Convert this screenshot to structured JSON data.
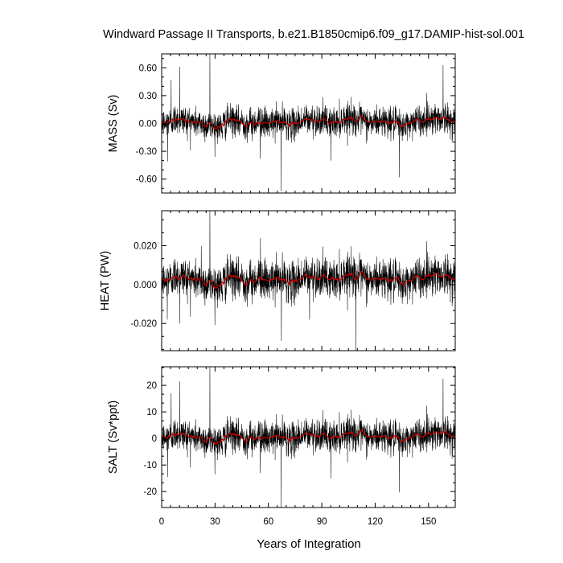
{
  "title": "Windward Passage II Transports, b.e21.B1850cmip6.f09_g17.DAMIP-hist-sol.001",
  "xlabel": "Years of Integration",
  "colors": {
    "raw": "#000000",
    "smooth": "#cc0000"
  },
  "chart_data": [
    {
      "type": "line",
      "ylabel": "MASS (Sv)",
      "xlim": [
        0,
        165
      ],
      "ylim": [
        -0.75,
        0.75
      ],
      "xticks": [
        0,
        30,
        60,
        90,
        120,
        150
      ],
      "xtick_labels": [
        "0",
        "30",
        "60",
        "90",
        "120",
        "150"
      ],
      "yticks": [
        -0.6,
        -0.3,
        0.0,
        0.3,
        0.6
      ],
      "ytick_labels": [
        "-0.60",
        "-0.30",
        "0.00",
        "0.30",
        "0.60"
      ],
      "series_style": {
        "mean": 0.02,
        "std": 0.08
      },
      "spikes": [
        [
          27.1,
          0.76
        ],
        [
          67.1,
          -0.73
        ],
        [
          10.2,
          0.61
        ],
        [
          5.3,
          0.47
        ],
        [
          133.6,
          -0.58
        ],
        [
          158.2,
          0.63
        ],
        [
          55.4,
          -0.38
        ],
        [
          3.4,
          -0.41
        ],
        [
          95.2,
          -0.4
        ]
      ],
      "series": [
        {
          "name": "",
          "style": "raw-monthly",
          "color": "#000000"
        },
        {
          "name": "",
          "style": "smoothed",
          "color": "#cc0000"
        }
      ]
    },
    {
      "type": "line",
      "ylabel": "HEAT (PW)",
      "xlim": [
        0,
        165
      ],
      "ylim": [
        -0.034,
        0.038
      ],
      "xticks": [
        0,
        30,
        60,
        90,
        120,
        150
      ],
      "xtick_labels": [
        "0",
        "30",
        "60",
        "90",
        "120",
        "150"
      ],
      "yticks": [
        -0.02,
        0.0,
        0.02
      ],
      "ytick_labels": [
        "-0.020",
        "0.000",
        "0.020"
      ],
      "series_style": {
        "mean": 0.003,
        "std": 0.005
      },
      "spikes": [
        [
          27.1,
          0.038
        ],
        [
          109.2,
          -0.034
        ],
        [
          67.3,
          -0.029
        ],
        [
          3.2,
          -0.018
        ],
        [
          10.1,
          -0.02
        ],
        [
          55.5,
          0.024
        ],
        [
          83.1,
          -0.018
        ],
        [
          22.3,
          0.02
        ]
      ],
      "series": [
        {
          "name": "",
          "style": "raw-monthly",
          "color": "#000000"
        },
        {
          "name": "",
          "style": "smoothed",
          "color": "#cc0000"
        }
      ]
    },
    {
      "type": "line",
      "ylabel": "SALT (Sv*ppt)",
      "xlim": [
        0,
        165
      ],
      "ylim": [
        -26,
        27
      ],
      "xticks": [
        0,
        30,
        60,
        90,
        120,
        150
      ],
      "xtick_labels": [
        "0",
        "30",
        "60",
        "90",
        "120",
        "150"
      ],
      "yticks": [
        -20,
        -10,
        0,
        10,
        20
      ],
      "ytick_labels": [
        "-20",
        "-10",
        "0",
        "10",
        "20"
      ],
      "series_style": {
        "mean": 0.8,
        "std": 3.0
      },
      "spikes": [
        [
          27.1,
          27.0
        ],
        [
          67.1,
          -26.0
        ],
        [
          10.2,
          21.5
        ],
        [
          5.3,
          17.0
        ],
        [
          133.6,
          -20.3
        ],
        [
          158.2,
          22.5
        ],
        [
          3.4,
          -14.5
        ],
        [
          55.4,
          -13.0
        ],
        [
          95.2,
          -15.0
        ]
      ],
      "series": [
        {
          "name": "",
          "style": "raw-monthly",
          "color": "#000000"
        },
        {
          "name": "",
          "style": "smoothed",
          "color": "#cc0000"
        }
      ]
    }
  ]
}
